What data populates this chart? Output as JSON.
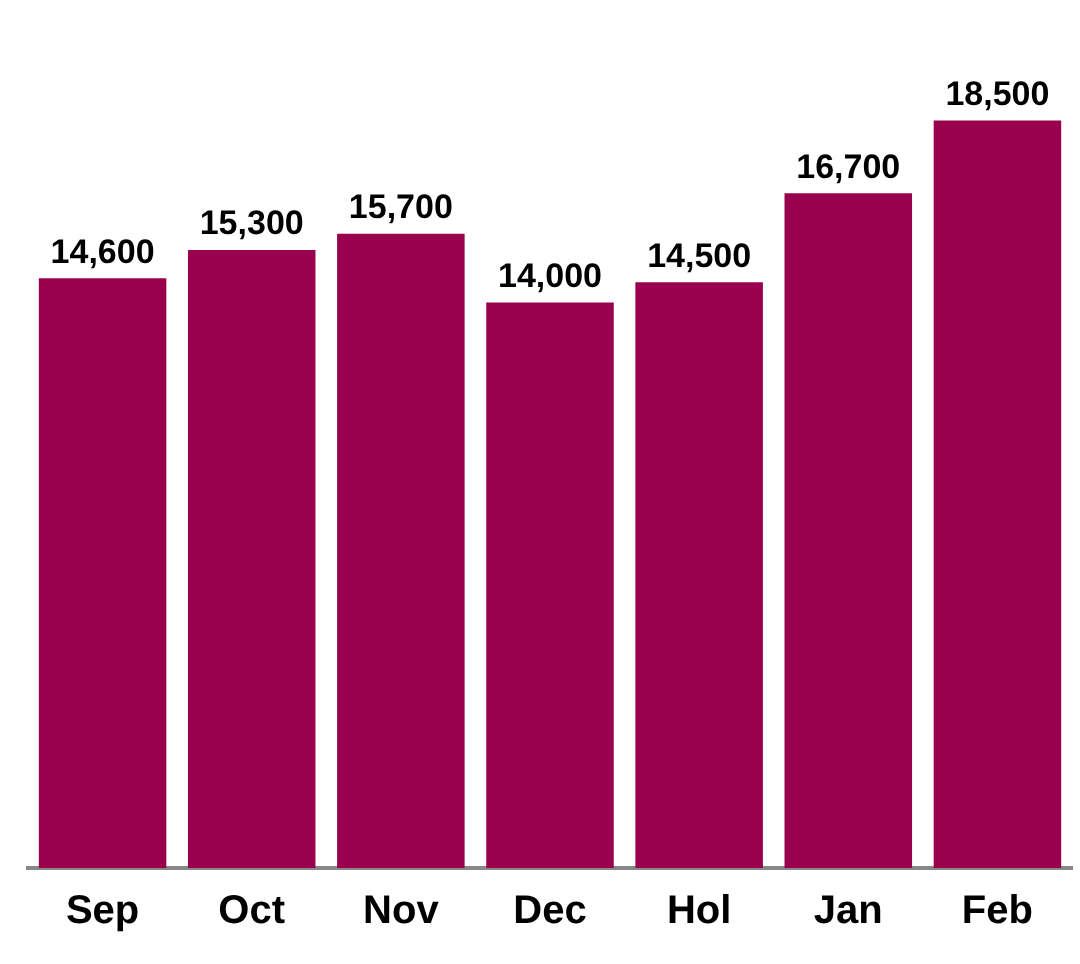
{
  "chart_data": {
    "type": "bar",
    "categories": [
      "Sep",
      "Oct",
      "Nov",
      "Dec",
      "Hol",
      "Jan",
      "Feb"
    ],
    "values": [
      14600,
      15300,
      15700,
      14000,
      14500,
      16700,
      18500
    ],
    "value_labels": [
      "14,600",
      "15,300",
      "15,700",
      "14,000",
      "14,500",
      "16,700",
      "18,500"
    ],
    "color": "#99004d",
    "grid": false,
    "legend": false
  }
}
